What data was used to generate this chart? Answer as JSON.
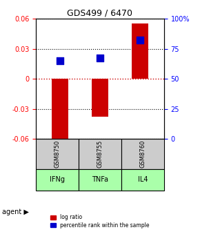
{
  "title": "GDS499 / 6470",
  "samples": [
    "GSM8750",
    "GSM8755",
    "GSM8760"
  ],
  "agents": [
    "IFNg",
    "TNFa",
    "IL4"
  ],
  "log_ratios": [
    -0.065,
    -0.038,
    0.055
  ],
  "percentile_ranks": [
    65,
    67,
    82
  ],
  "ylim_left": [
    -0.06,
    0.06
  ],
  "ylim_right": [
    0,
    100
  ],
  "yticks_left": [
    -0.06,
    -0.03,
    0,
    0.03,
    0.06
  ],
  "yticks_right": [
    0,
    25,
    50,
    75,
    100
  ],
  "bar_color": "#cc0000",
  "dot_color": "#0000cc",
  "agent_bg_color": "#aaffaa",
  "sample_bg_color": "#cccccc",
  "zero_line_color": "#cc0000",
  "grid_color": "#000000",
  "bar_width": 0.4,
  "dot_size": 50
}
